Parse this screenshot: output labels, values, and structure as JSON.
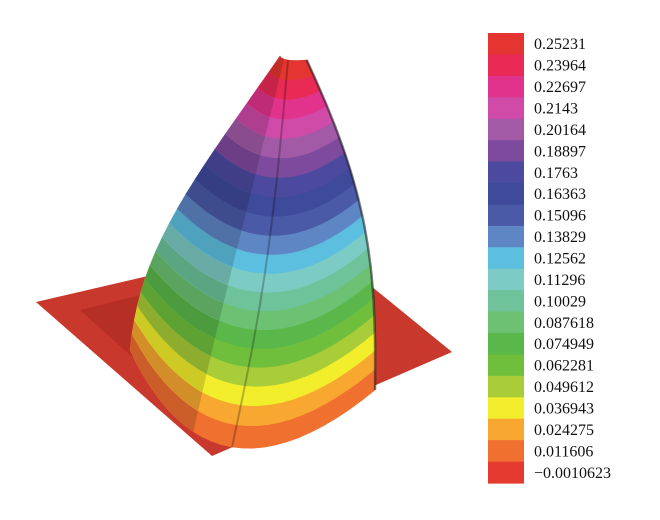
{
  "chart_data": {
    "type": "surface",
    "title": "",
    "xlabel": "",
    "ylabel": "",
    "grid": false,
    "legend_placement": "right",
    "colorbar": {
      "labels": [
        "0.25231",
        "0.23964",
        "0.22697",
        "0.2143",
        "0.20164",
        "0.18897",
        "0.1763",
        "0.16363",
        "0.15096",
        "0.13829",
        "0.12562",
        "0.11296",
        "0.10029",
        "0.087618",
        "0.074949",
        "0.062281",
        "0.049612",
        "0.036943",
        "0.024275",
        "0.011606",
        "−0.0010623"
      ],
      "values": [
        0.25231,
        0.23964,
        0.22697,
        0.2143,
        0.20164,
        0.18897,
        0.1763,
        0.16363,
        0.15096,
        0.13829,
        0.12562,
        0.11296,
        0.10029,
        0.087618,
        0.074949,
        0.062281,
        0.049612,
        0.036943,
        0.024275,
        0.011606,
        -0.0010623
      ],
      "colors": [
        "#e53530",
        "#e82a55",
        "#e2338c",
        "#d04aa8",
        "#a25aa6",
        "#7e4a9d",
        "#4c4a9e",
        "#3e4a9a",
        "#4a5aa6",
        "#5e86c4",
        "#5dbfe0",
        "#7ccbc4",
        "#6ec39a",
        "#6cc272",
        "#5ab84a",
        "#70bf3c",
        "#a8cd38",
        "#f2ee2c",
        "#f8a830",
        "#f07030",
        "#e53a30"
      ]
    },
    "surface": {
      "base_value": -0.0010623,
      "peak_value": 0.25231,
      "base_color": "#c8382c"
    }
  }
}
